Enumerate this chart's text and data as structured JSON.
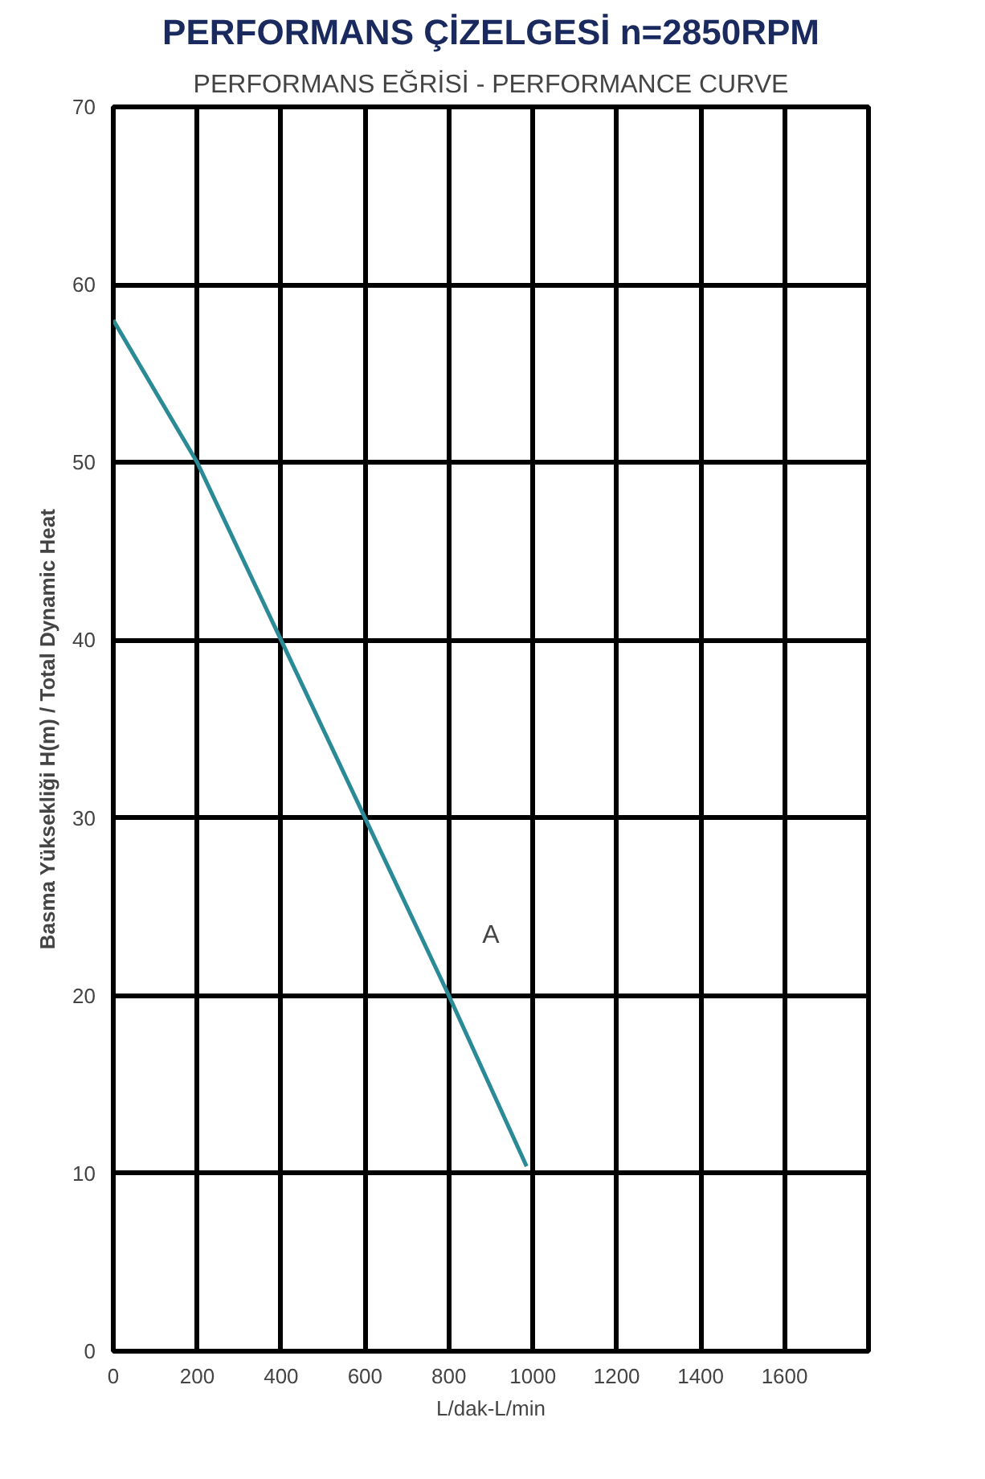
{
  "chart_data": {
    "type": "line",
    "title": "PERFORMANS ÇİZELGESİ n=2850RPM",
    "subtitle": "PERFORMANS EĞRİSİ - PERFORMANCE CURVE",
    "xlabel": "L/dak-L/min",
    "ylabel": "Basma Yüksekliği H(m) / Total Dynamic Heat",
    "x": [
      0,
      200,
      400,
      600,
      800,
      985
    ],
    "series": [
      {
        "color": "#2a8a96",
        "values": [
          58,
          50,
          40,
          30,
          20,
          10.4
        ]
      }
    ],
    "annotations": [
      "A"
    ],
    "xlim": [
      0,
      1800
    ],
    "xticks": [
      0,
      200,
      400,
      600,
      800,
      1000,
      1200,
      1400,
      1600,
      {
        "value": 1800,
        "label": null
      }
    ],
    "ylim": [
      0,
      70
    ],
    "yticks": [
      0,
      10,
      20,
      30,
      40,
      50,
      60,
      70
    ],
    "grid": true,
    "line_style": "solid",
    "marker": "none"
  }
}
